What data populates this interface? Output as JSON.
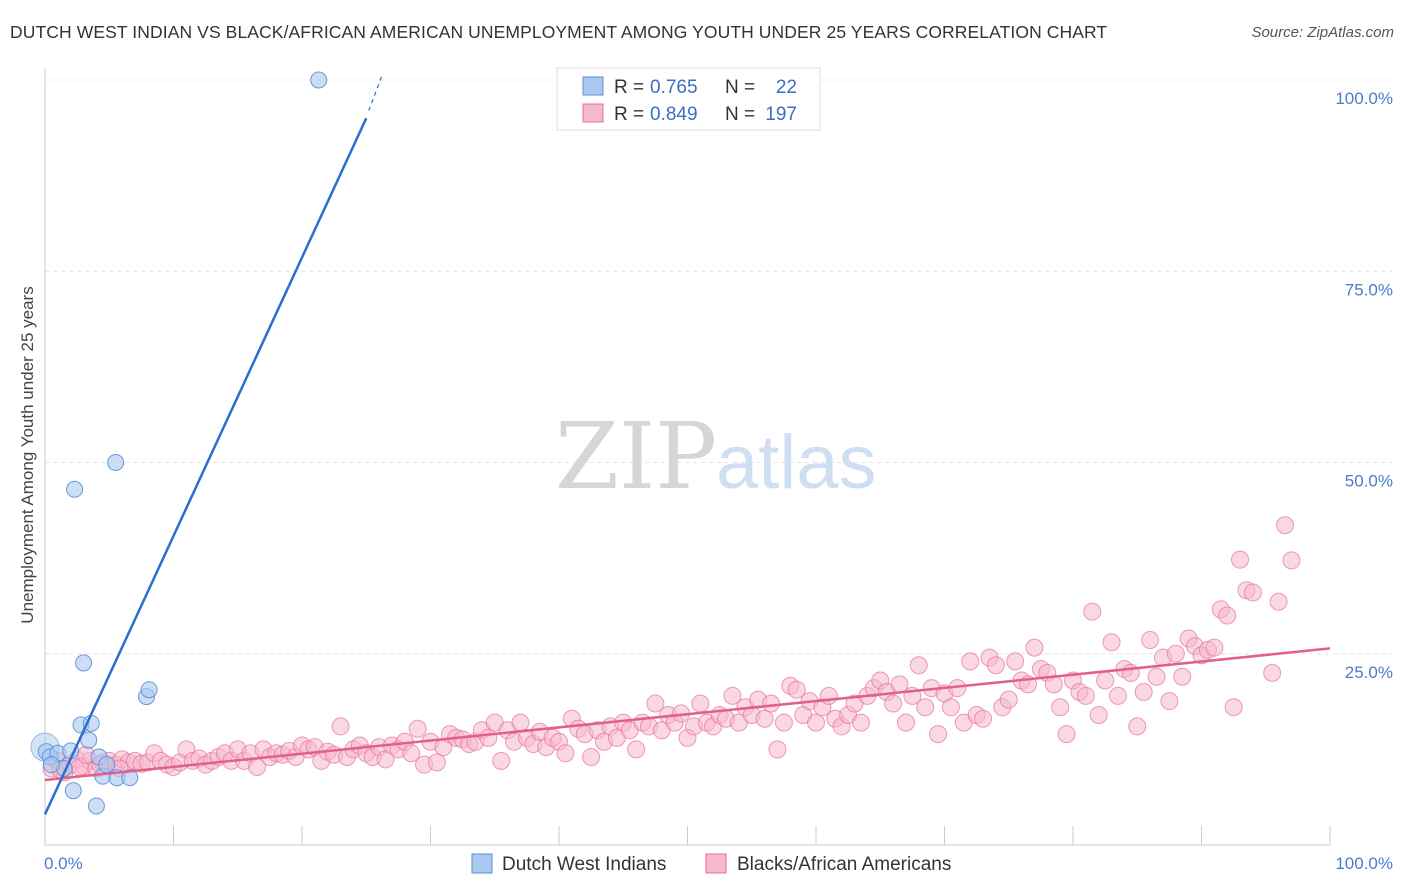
{
  "title": "DUTCH WEST INDIAN VS BLACK/AFRICAN AMERICAN UNEMPLOYMENT AMONG YOUTH UNDER 25 YEARS CORRELATION CHART",
  "source": "Source: ZipAtlas.com",
  "watermark": {
    "zip": "ZIP",
    "atlas": "atlas"
  },
  "legend": {
    "rows": [
      {
        "r_label": "R =",
        "r_value": "0.765",
        "n_label": "N =",
        "n_value": "22"
      },
      {
        "r_label": "R =",
        "r_value": "0.849",
        "n_label": "N =",
        "n_value": "197"
      }
    ]
  },
  "chart_data": {
    "type": "scatter",
    "title": "DUTCH WEST INDIAN VS BLACK/AFRICAN AMERICAN UNEMPLOYMENT AMONG YOUTH UNDER 25 YEARS CORRELATION CHART",
    "xlabel": "",
    "ylabel": "Unemployment Among Youth under 25 years",
    "xlim": [
      0,
      100
    ],
    "ylim": [
      0,
      100
    ],
    "x_tick_labels": [
      "0.0%",
      "100.0%"
    ],
    "y_tick_labels": [
      "100.0%",
      "75.0%",
      "50.0%",
      "25.0%"
    ],
    "y_ticks": [
      100,
      75,
      50,
      25
    ],
    "grid": true,
    "legend_position": "bottom",
    "colors": {
      "dutch": "#5b8fd6",
      "dutch_fill": "#aac8f0",
      "black": "#e8719a",
      "black_fill": "#f5b8cc",
      "axis_text": "#4a7cc9"
    },
    "series": [
      {
        "name": "Dutch West Indians",
        "r": 0.765,
        "n": 22,
        "trend": {
          "x": [
            0,
            25
          ],
          "y": [
            4,
            95
          ]
        },
        "points": [
          [
            0.1,
            12.2
          ],
          [
            0.4,
            11.5
          ],
          [
            1.0,
            12.0
          ],
          [
            1.5,
            10.0
          ],
          [
            2.0,
            12.3
          ],
          [
            2.2,
            7.1
          ],
          [
            2.3,
            46.5
          ],
          [
            2.8,
            15.7
          ],
          [
            3.0,
            23.8
          ],
          [
            3.4,
            13.7
          ],
          [
            3.6,
            15.9
          ],
          [
            4.0,
            5.1
          ],
          [
            4.2,
            11.5
          ],
          [
            4.5,
            9.0
          ],
          [
            4.8,
            10.5
          ],
          [
            5.5,
            50.0
          ],
          [
            5.6,
            8.8
          ],
          [
            6.6,
            8.8
          ],
          [
            7.9,
            19.4
          ],
          [
            8.1,
            20.3
          ],
          [
            21.3,
            100.0
          ],
          [
            0.5,
            10.5
          ]
        ]
      },
      {
        "name": "Blacks/African Americans",
        "r": 0.849,
        "n": 197,
        "trend": {
          "x": [
            0,
            100
          ],
          "y": [
            8.5,
            25.7
          ]
        },
        "points": [
          [
            0.5,
            10.0
          ],
          [
            1.0,
            11.0
          ],
          [
            1.5,
            9.5
          ],
          [
            2.0,
            10.5
          ],
          [
            2.5,
            11.2
          ],
          [
            3.0,
            10.3
          ],
          [
            3.5,
            11.0
          ],
          [
            4.0,
            10.0
          ],
          [
            4.5,
            10.8
          ],
          [
            5.0,
            11.0
          ],
          [
            5.5,
            10.5
          ],
          [
            6.0,
            11.2
          ],
          [
            6.5,
            10.8
          ],
          [
            7.0,
            11.0
          ],
          [
            7.5,
            10.6
          ],
          [
            8.0,
            10.8
          ],
          [
            8.5,
            12.0
          ],
          [
            9.0,
            11.0
          ],
          [
            9.5,
            10.5
          ],
          [
            10.0,
            10.2
          ],
          [
            10.5,
            10.8
          ],
          [
            11.0,
            12.5
          ],
          [
            11.5,
            11.0
          ],
          [
            12.0,
            11.3
          ],
          [
            12.5,
            10.5
          ],
          [
            13.0,
            11.0
          ],
          [
            13.5,
            11.5
          ],
          [
            14.0,
            12.0
          ],
          [
            14.5,
            11.0
          ],
          [
            15.0,
            12.5
          ],
          [
            15.5,
            11.0
          ],
          [
            16.0,
            12.0
          ],
          [
            16.5,
            10.2
          ],
          [
            17.0,
            12.5
          ],
          [
            17.5,
            11.5
          ],
          [
            18.0,
            12.0
          ],
          [
            18.5,
            11.8
          ],
          [
            19.0,
            12.3
          ],
          [
            19.5,
            11.5
          ],
          [
            20.0,
            13.0
          ],
          [
            20.5,
            12.5
          ],
          [
            21.0,
            12.8
          ],
          [
            21.5,
            11.0
          ],
          [
            22.0,
            12.2
          ],
          [
            22.5,
            11.8
          ],
          [
            23.0,
            15.5
          ],
          [
            23.5,
            11.5
          ],
          [
            24.0,
            12.5
          ],
          [
            24.5,
            13.0
          ],
          [
            25.0,
            12.0
          ],
          [
            25.5,
            11.5
          ],
          [
            26.0,
            12.8
          ],
          [
            26.5,
            11.2
          ],
          [
            27.0,
            13.0
          ],
          [
            27.5,
            12.5
          ],
          [
            28.0,
            13.5
          ],
          [
            28.5,
            12.0
          ],
          [
            29.0,
            15.2
          ],
          [
            29.5,
            10.5
          ],
          [
            30.0,
            13.5
          ],
          [
            30.5,
            10.8
          ],
          [
            31.0,
            12.8
          ],
          [
            31.5,
            14.5
          ],
          [
            32.0,
            14.0
          ],
          [
            32.5,
            13.8
          ],
          [
            33.0,
            13.2
          ],
          [
            33.5,
            13.5
          ],
          [
            34.0,
            15.0
          ],
          [
            34.5,
            14.0
          ],
          [
            35.0,
            16.0
          ],
          [
            35.5,
            11.0
          ],
          [
            36.0,
            15.0
          ],
          [
            36.5,
            13.5
          ],
          [
            37.0,
            16.0
          ],
          [
            37.5,
            14.0
          ],
          [
            38.0,
            13.2
          ],
          [
            38.5,
            14.8
          ],
          [
            39.0,
            12.8
          ],
          [
            39.5,
            14.0
          ],
          [
            40.0,
            13.5
          ],
          [
            40.5,
            12.0
          ],
          [
            41.0,
            16.5
          ],
          [
            41.5,
            15.2
          ],
          [
            42.0,
            14.5
          ],
          [
            42.5,
            11.5
          ],
          [
            43.0,
            15.0
          ],
          [
            43.5,
            13.5
          ],
          [
            44.0,
            15.5
          ],
          [
            44.5,
            14.0
          ],
          [
            45.0,
            16.0
          ],
          [
            45.5,
            15.0
          ],
          [
            46.0,
            12.5
          ],
          [
            46.5,
            16.0
          ],
          [
            47.0,
            15.5
          ],
          [
            47.5,
            18.5
          ],
          [
            48.0,
            15.0
          ],
          [
            48.5,
            17.0
          ],
          [
            49.0,
            16.0
          ],
          [
            49.5,
            17.2
          ],
          [
            50.0,
            14.0
          ],
          [
            50.5,
            15.5
          ],
          [
            51.0,
            18.5
          ],
          [
            51.5,
            16.0
          ],
          [
            52.0,
            15.5
          ],
          [
            52.5,
            17.0
          ],
          [
            53.0,
            16.5
          ],
          [
            53.5,
            19.5
          ],
          [
            54.0,
            16.0
          ],
          [
            54.5,
            18.0
          ],
          [
            55.0,
            17.0
          ],
          [
            55.5,
            19.0
          ],
          [
            56.0,
            16.5
          ],
          [
            56.5,
            18.5
          ],
          [
            57.0,
            12.5
          ],
          [
            57.5,
            16.0
          ],
          [
            58.0,
            20.8
          ],
          [
            58.5,
            20.3
          ],
          [
            59.0,
            17.0
          ],
          [
            59.5,
            18.8
          ],
          [
            60.0,
            16.0
          ],
          [
            60.5,
            18.0
          ],
          [
            61.0,
            19.5
          ],
          [
            61.5,
            16.5
          ],
          [
            62.0,
            15.5
          ],
          [
            62.5,
            17.0
          ],
          [
            63.0,
            18.5
          ],
          [
            63.5,
            16.0
          ],
          [
            64.0,
            19.5
          ],
          [
            64.5,
            20.5
          ],
          [
            65.0,
            21.5
          ],
          [
            65.5,
            20.0
          ],
          [
            66.0,
            18.5
          ],
          [
            66.5,
            21.0
          ],
          [
            67.0,
            16.0
          ],
          [
            67.5,
            19.5
          ],
          [
            68.0,
            23.5
          ],
          [
            68.5,
            18.0
          ],
          [
            69.0,
            20.5
          ],
          [
            69.5,
            14.5
          ],
          [
            70.0,
            19.8
          ],
          [
            70.5,
            18.0
          ],
          [
            71.0,
            20.5
          ],
          [
            71.5,
            16.0
          ],
          [
            72.0,
            24.0
          ],
          [
            72.5,
            17.0
          ],
          [
            73.0,
            16.5
          ],
          [
            73.5,
            24.5
          ],
          [
            74.0,
            23.5
          ],
          [
            74.5,
            18.0
          ],
          [
            75.0,
            19.0
          ],
          [
            75.5,
            24.0
          ],
          [
            76.0,
            21.5
          ],
          [
            76.5,
            21.0
          ],
          [
            77.0,
            25.8
          ],
          [
            77.5,
            23.0
          ],
          [
            78.0,
            22.5
          ],
          [
            78.5,
            21.0
          ],
          [
            79.0,
            18.0
          ],
          [
            79.5,
            14.5
          ],
          [
            80.0,
            21.5
          ],
          [
            80.5,
            20.0
          ],
          [
            81.0,
            19.5
          ],
          [
            81.5,
            30.5
          ],
          [
            82.0,
            17.0
          ],
          [
            82.5,
            21.5
          ],
          [
            83.0,
            26.5
          ],
          [
            83.5,
            19.5
          ],
          [
            84.0,
            23.0
          ],
          [
            84.5,
            22.5
          ],
          [
            85.0,
            15.5
          ],
          [
            85.5,
            20.0
          ],
          [
            86.0,
            26.8
          ],
          [
            86.5,
            22.0
          ],
          [
            87.0,
            24.5
          ],
          [
            87.5,
            18.8
          ],
          [
            88.0,
            25.0
          ],
          [
            88.5,
            22.0
          ],
          [
            89.0,
            27.0
          ],
          [
            89.5,
            26.0
          ],
          [
            90.0,
            24.8
          ],
          [
            90.5,
            25.5
          ],
          [
            91.0,
            25.8
          ],
          [
            91.5,
            30.8
          ],
          [
            92.0,
            30.0
          ],
          [
            92.5,
            18.0
          ],
          [
            93.0,
            37.3
          ],
          [
            93.5,
            33.3
          ],
          [
            94.0,
            33.0
          ],
          [
            95.5,
            22.5
          ],
          [
            96.0,
            31.8
          ],
          [
            97.0,
            37.2
          ],
          [
            96.5,
            41.8
          ],
          [
            1.2,
            9.8
          ],
          [
            2.7,
            10.2
          ],
          [
            4.3,
            10.5
          ],
          [
            5.8,
            10.0
          ],
          [
            3.2,
            11.8
          ]
        ]
      }
    ]
  },
  "bottom_legend": [
    {
      "label": "Dutch West Indians"
    },
    {
      "label": "Blacks/African Americans"
    }
  ]
}
